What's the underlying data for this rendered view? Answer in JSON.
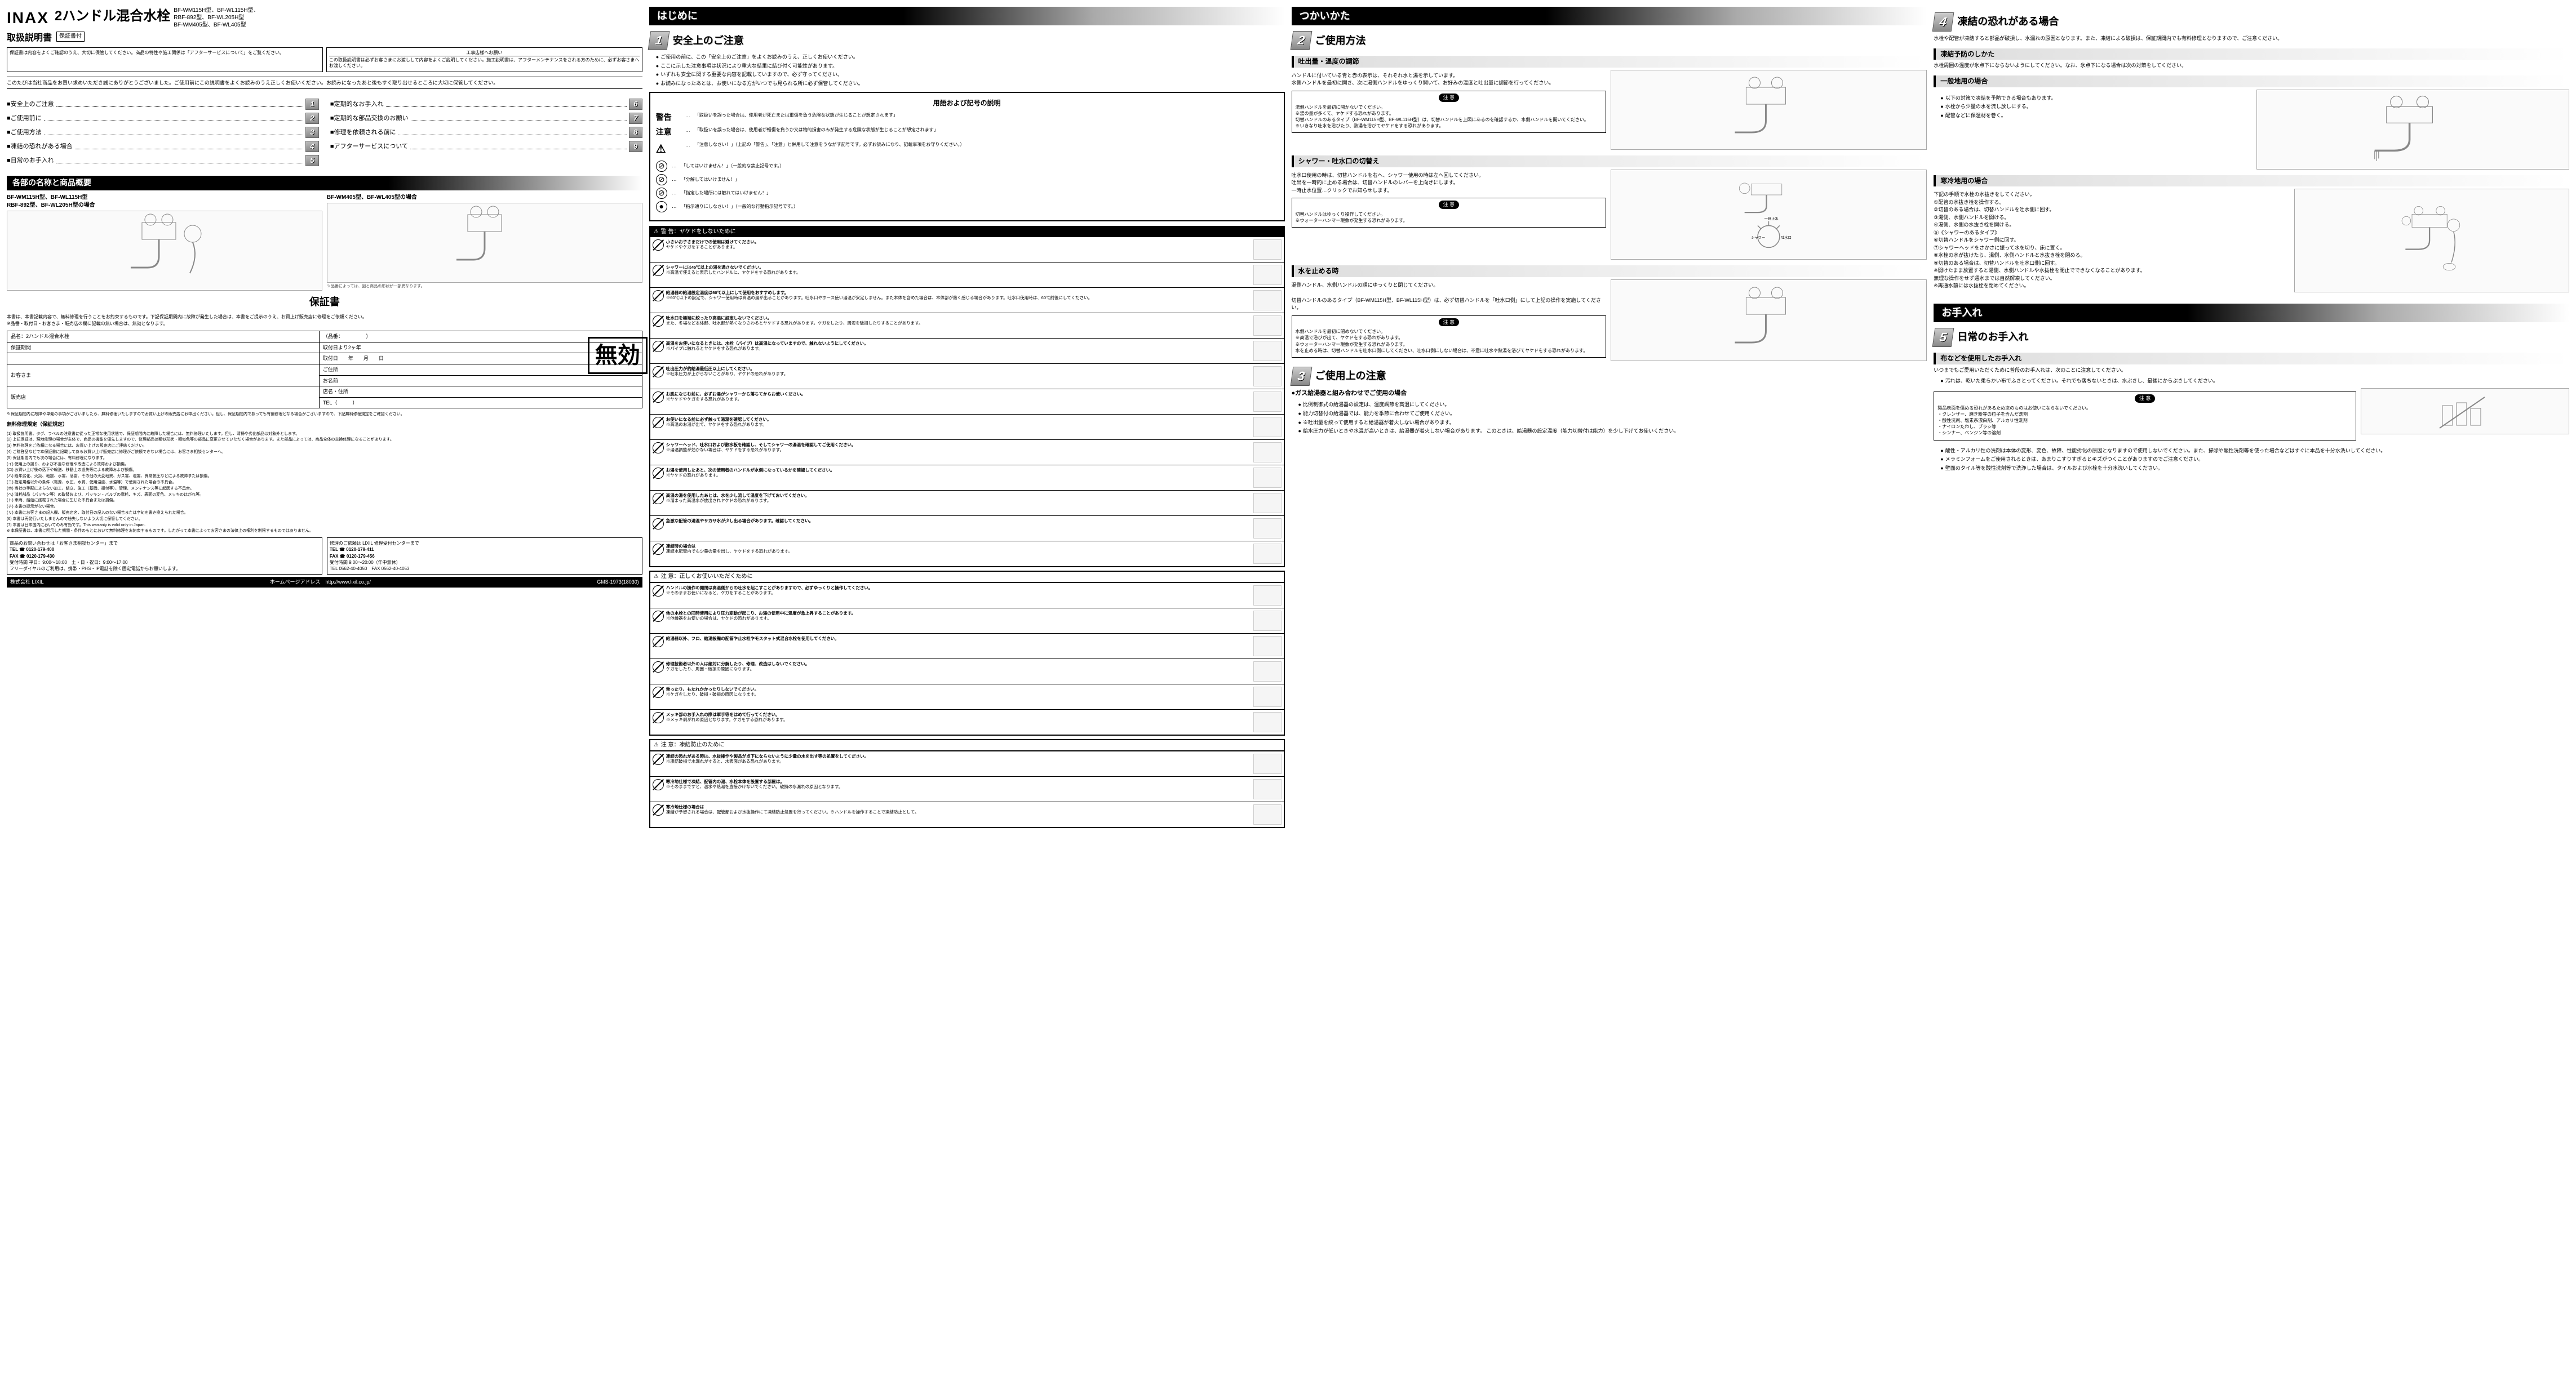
{
  "brand": "INAX",
  "product_title": "2ハンドル混合水栓",
  "models_line1": "BF-WM115H型、BF-WL115H型、",
  "models_line2": "RBF-892型、BF-WL205H型",
  "models_line3": "BF-WM405型、BF-WL405型",
  "manual_label": "取扱説明書",
  "warranty_tag": "保証書付",
  "box1": "保証書は内容をよくご確認のうえ、大切に保管してください。商品の特性や施工関係は「アフターサービスについて」をご覧ください。",
  "box2_title": "工事店様へお願い",
  "box2": "この取扱説明書は必ずお客さまにお渡しして内容をよくご説明してください。施工説明書は、アフターメンテナンスをされる方のために、必ずお客さまへお渡しください。",
  "intro": "このたびは当社商品をお買い求めいただき誠にありがとうございました。ご使用前にこの説明書をよくお読みのうえ正しくお使いください。お読みになったあと後もすぐ取り出せるところに大切に保管してください。",
  "toc_left": [
    {
      "t": "安全上のご注意",
      "n": "1"
    },
    {
      "t": "ご使用前に",
      "n": "2"
    },
    {
      "t": "ご使用方法",
      "n": "3"
    },
    {
      "t": "凍結の恐れがある場合",
      "n": "4"
    },
    {
      "t": "日常のお手入れ",
      "n": "5"
    }
  ],
  "toc_right": [
    {
      "t": "定期的なお手入れ",
      "n": "6"
    },
    {
      "t": "定期的な部品交換のお願い",
      "n": "7"
    },
    {
      "t": "修理を依頼される前に",
      "n": "8"
    },
    {
      "t": "アフターサービスについて",
      "n": "9"
    }
  ],
  "parts_banner": "各部の名称と商品概要",
  "model_a": "BF-WM115H型、BF-WL115H型\nRBF-892型、BF-WL205H型の場合",
  "model_b": "BF-WM405型、BF-WL405型の場合",
  "diagram_caption": "※品番によっては、図と商品の形状が一部異なります。",
  "warranty_title": "保証書",
  "warranty_intro": "本書は、本書記載内容で、無料修理を行うことをお約束するものです。下記保証期間内に故障が発生した場合は、本書をご提示のうえ、お買上げ販売店に修理をご依頼ください。\n※品番・取付日・お客さま・販売店の欄に記載の無い場合は、無効となります。",
  "wt": {
    "r1a": "品名：2ハンドル混合水栓",
    "r1b": "（品番：　　　　　）",
    "r2a": "保証期間",
    "r2b": "取付日より2ヶ年",
    "r2c": "取付日　　年　　月　　日",
    "r3a": "お客さま",
    "r3b": "ご住所",
    "r3c": "お名前",
    "r4a": "販売店",
    "r4b": "店名・住所",
    "r4c": "TEL（　　　）"
  },
  "void": "無効",
  "warranty_note": "※保証期間内に故障や単発の事項がございましたら、無料修理いたしますのでお買い上げの販売店にお申出ください。但し、保証期間内であっても有償修理となる場合がございますので、下記無料修理規定をご確認ください。",
  "warranty_rules_title": "無料修理規定（保証規定）",
  "warranty_rules": [
    "(1) 取扱説明書、タグ、ラベルの注意書に従った正常な使用状態で、保証期間内に故障した場合には、無料修理いたします。但し、清掃や劣化部品は対象外とします。",
    "(2) 上記保証は、現地修理の場合が主体で、商品の機能を優先しますので、修理部品は類似形状・類似色等の部品に変更させていただく場合があります。また部品によっては、商品全体の交換修理になることがあります。",
    "(3) 無料修理をご依頼になる場合には、お買い上げの販売店にご連絡ください。",
    "(4) ご贈答品などで本保証書に記載してあるお買い上げ販売店に修理がご依頼できない場合には、お客さま相談センターへ。",
    "(5) 保証期間内でも次の場合には、有料修理になります。",
    "(イ) 使用上の誤り、および不当な修理や改造による故障および損傷。",
    "(ロ) お買い上げ後の落下や輸送、移動上の過失等による故障および損傷。",
    "(ハ) 経年劣化、火災、地震、水害、落雷、その他の天変地異、ガス害、塩害、異常気圧などによる故障または損傷。",
    "(ニ) 指定規格以外の条件（電源、水圧、水質、使用温度、水温等）で使用された場合の不具合。",
    "(ホ) 当社の手配によらない加工、組立、施工（基礎、据付等）、管理、メンテナンス等に起因する不具合。",
    "(ヘ) 消耗部品（パッキン等）の取替および、パッキン・バルブの摩耗、キズ、表面の変色、メッキのはがれ等。",
    "(ト) 車両、船舶に搭載された場合に生じた不具合または損傷。",
    "(チ) 本書の提示がない場合。",
    "(リ) 本書にお客さまの記入欄、販売店名、取付日の記入のない場合または字句を書き換えられた場合。",
    "(6) 本書は再発行いたしませんので紛失しないよう大切に保管してください。",
    "(7) 本書は日本国内においてのみ有効です。This warranty is valid only in Japan.",
    "※本保証書は、本書に明示した期間・条件のもとにおいて無料修理をお約束するものです。したがって本書によってお客さまの法律上の権利を制限するものではありません。"
  ],
  "contact_l_title": "商品のお問い合わせは「お客さま相談センター」まで",
  "contact_l_tel": "TEL ☎ 0120-179-400",
  "contact_l_fax": "FAX ☎ 0120-179-430",
  "contact_l_hours": "受付時間 平日：9:00～18:00　土・日・祝日：9:00～17:00",
  "contact_l_note": "フリーダイヤルのご利用は、携帯・PHS・IP電話を除く固定電話からお願いします。",
  "contact_r_title": "修理のご依頼は LIXIL 修理受付センターまで",
  "contact_r_tel": "TEL ☎ 0120-179-411",
  "contact_r_fax": "FAX ☎ 0120-179-456",
  "contact_r_hours": "受付時間 9:00～20:00（年中無休）",
  "contact_r_tel2": "TEL 0562-40-4050　FAX 0562-40-4053",
  "company": "株式会社 LIXIL",
  "homepage": "ホームページアドレス　http://www.lixil.co.jp/",
  "doc_no": "GMS-1973(18030)",
  "hajimeni": "はじめに",
  "sec1_title": "安全上のご注意",
  "sec1_bullets": [
    "ご使用の前に、この「安全上のご注意」をよくお読みのうえ、正しくお使いください。",
    "ここに示した注意事項は状況により重大な結果に結び付く可能性があります。",
    "いずれも安全に関する重要な内容を記載していますので、必ず守ってください。",
    "お読みになったあとは、お使いになる方がいつでも見られる所に必ず保管してください。"
  ],
  "terms_title": "用語および記号の説明",
  "keikoku": "警告",
  "chui": "注意",
  "keikoku_desc": "「取扱いを誤った場合は、使用者が死亡または重傷を負う危険な状態が生じることが想定されます」",
  "chui_desc": "「取扱いを誤った場合は、使用者が軽傷を負うか又は物的損害のみが発生する危険な状態が生じることが想定されます」",
  "tri_desc": "「注意しなさい！」（上記の「警告」、「注意」と併用して注意をうながす記号です。必ずお読みになり、記載事項をお守りください。）",
  "sym_rows": [
    {
      "s": "⊘",
      "t": "「してはいけません！」（一般的な禁止記号です。）"
    },
    {
      "s": "⊘",
      "t": "「分解してはいけません！」"
    },
    {
      "s": "⊘",
      "t": "「指定した場所には触れてはいけません！」"
    },
    {
      "s": "●",
      "t": "「指示通りにしなさい！」（一般的な行動指示記号です。）"
    }
  ],
  "panel_warn_title": "警 告：ヤケドをしないために",
  "warn_items": [
    {
      "b": "小さいお子さまだけでの使用は避けてください。",
      "d": "ヤケドやケガをすることがあります。"
    },
    {
      "b": "シャワーには45℃以上の湯を通さないでください。",
      "d": "※高温で使えると表示したハンドルに、ヤケドをする恐れがあります。"
    },
    {
      "b": "給湯器の給湯設定温度は60℃以上にして使用をおすすめします。",
      "d": "※60℃以下の設定で、シャワー使用時は高温の湯が出ることがあります。吐水口やホース使い湯温が安定しません。また本体を含めた場合は、本体部が熱く感じる場合があります。吐水口使用時は、60℃前後にしてください。"
    },
    {
      "b": "吐水口を極端に絞ったり高温に設定しないでください。",
      "d": "また、冬場など本体部、吐水部が熱くなりさわるとヤケドする恐れがあります。ケガをしたり、周辺を破損したりすることがあります。"
    },
    {
      "b": "高温をお使いになるときには、水栓（パイプ）は高温になっていますので、触れないようにしてください。",
      "d": "※パイプに触れるとヤケドをする恐れがあります。"
    },
    {
      "b": "吐出圧力が約給湯最低圧以上にしてください。",
      "d": "※吐水圧力が上がらないことがあり、ヤケドの恐れがあります。"
    },
    {
      "b": "お肌になじむ前に、必ずお湯がシャワーから落ちてからお使いください。",
      "d": "※ヤケドやケガをする恐れがあります。"
    },
    {
      "b": "お使いになる前に必ず触って湯温を確認してください。",
      "d": "※高温のお湯が出て、ヤケドをする恐れがあります。"
    },
    {
      "b": "シャワーヘッド、吐水口および散水板を確認し、そしてシャワーの湯温を確認してご使用ください。",
      "d": "※湯温調整が効かない場合は、ヤケドをする恐れがあります。"
    },
    {
      "b": "お湯を使用したあと、次の使用者のハンドルが水側になっているかを確認してください。",
      "d": "※ヤケドの恐れがあります。"
    },
    {
      "b": "高温の湯を使用したあとは、水を少し流して温度を下げておいてください。",
      "d": "※溜まった高温水が放出されヤケドの恐れがあります。"
    },
    {
      "b": "急激な配管の湯温やサカサ水が少し出る場合があります。確認してください。"
    },
    {
      "b": "凍結時の場合は",
      "d": "凍結水配管内でも少量の量を出し、ヤケドをする恐れがあります。"
    }
  ],
  "panel_caution1_title": "注 意：正しくお使いいただくために",
  "caution1_items": [
    {
      "b": "ハンドルの操作の開閉は高温側からの吐水を起こすことがありますので、必ずゆっくりと操作してください。",
      "d": "※そのままお使いになると、ケガをすることがあります。"
    },
    {
      "b": "他の水栓との同時使用により圧力変動が起こり、お湯の使用中に温度が急上昇することがあります。",
      "d": "※他機器をお使いの場合は、ヤケドの恐れがあります。"
    },
    {
      "b": "給湯器以外、フロ、給湯設備の配管や止水栓やモスタット式混合水栓を使用してください。"
    },
    {
      "b": "修理技術者以外の人は絶対に分解したり、修理、改造はしないでください。",
      "d": "ケガをしたり、周囲・破損の原因になります。"
    },
    {
      "b": "乗ったり、もたれかかったりしないでください。",
      "d": "※ケガをしたり、破損・破損の原因になります。"
    },
    {
      "b": "メッキ部のお手入れの際は軍手等をはめて行ってください。",
      "d": "※メッキ剥がれの原因となります。ケガをする恐れがあります。"
    }
  ],
  "panel_caution2_title": "注 意：凍結防止のために",
  "caution2_items": [
    {
      "b": "凍結の恐れがある時は、水抜操作や製品が点下にならないように少量の水を出す等の処置をしてください。",
      "d": "※凍結破損で水漏れがすると、水表面がある恐れがあります。"
    },
    {
      "b": "寒冷地仕様で凍結、配管内の湯、水栓本体を設置する部屋は。",
      "d": "※そのままですと、温水や熱湯を直接かけないでください。破損の水漏れの原因となります。"
    },
    {
      "b": "寒冷地仕様の場合は",
      "d": "凍結が予想される場合は、配管部および水抜操作にて凍結防止処置を行ってください。※ハンドルを操作することで凍結防止として。"
    }
  ],
  "tsukaikata": "つかいかた",
  "sec2_title": "ご使用方法",
  "sub_flow": "吐出量・温度の調節",
  "flow_text": "ハンドルに付いている青と赤の表示は、それぞれ水と湯を示しています。\n水側ハンドルを最初に開き、次に湯側ハンドルをゆっくり開いて、お好みの温度と吐出量に調節を行ってください。",
  "flow_note_items": [
    "湯側ハンドルを最初に開かないでください。",
    "※湯の量が多くて、ヤケドする恐れがあります。",
    "切替ハンドルのあるタイプ（BF-WM115H型、BF-WL115H型）は、切替ハンドルを上図にあるのを確認するか、水側ハンドルを開いてください。",
    "※いきなり吐水を浴びたり、熱湯を浴びてヤケドをする恐れがあります。"
  ],
  "sub_shower": "シャワー・吐水口の切替え",
  "shower_text": "吐水口使用の時は、切替ハンドルを右へ、シャワー使用の時は左へ回してください。\n吐出を一時的に止める場合は、切替ハンドルのレバーを上向きにします。\n一時止水位置…クリックでお知らせします。",
  "shower_note": "切替ハンドルはゆっくり操作してください。\n※ウォーターハンマー現象が発生する恐れがあります。",
  "sub_stop": "水を止める時",
  "stop_text": "湯側ハンドル、水側ハンドルの順にゆっくりと閉じてください。\n\n切替ハンドルのあるタイプ（BF-WM115H型、BF-WL115H型）は、必ず切替ハンドルを「吐水口側」にして上記の操作を実施してください。",
  "stop_note_items": [
    "水側ハンドルを最初に閉めないでください。",
    "※高温で浴びが出て、ヤケドをする恐れがあります。",
    "※ウォーターハンマー現象が発生する恐れがあります。",
    "水を止める時は、切替ハンドルを吐水口側にしてください、吐水口側にしない場合は、不意に吐水や熱湯を浴びてヤケドをする恐れがあります。"
  ],
  "sec3_title": "ご使用上の注意",
  "gas_title": "●ガス給湯器と組み合わせでご使用の場合",
  "gas_items": [
    "比例制御式の給湯器の設定は、温度調節を高温にしてください。",
    "能力切替付の給湯器では、能力を季節に合わせてご使用ください。",
    "※吐出量を絞って使用すると給湯器が着火しない場合があります。",
    "給水圧力が低いときや水温が高いときは、給湯器が着火しない場合があります。\nこのときは、給湯器の設定温度（能力切替付は能力）を少し下げてお使いください。"
  ],
  "sec4_title": "凍結の恐れがある場合",
  "sec4_intro": "水栓や配管が凍結すると部品が破損し、水漏れの原因となります。また、凍結による破損は、保証期間内でも有料修理となりますので、ご注意ください。",
  "sub_prevent": "凍結予防のしかた",
  "prevent_text": "水栓周囲の温度が氷点下にならないようにしてください。なお、氷点下になる場合は次の対策をしてください。",
  "sub_general": "一般地用の場合",
  "general_items": [
    "以下の対策で凍結を予防できる場合もあります。",
    "水栓から少量の水を流し放しにする。",
    "配管などに保温材を巻く。"
  ],
  "sub_cold": "寒冷地用の場合",
  "cold_items": [
    "下記の手順で水栓の水抜きをしてください。",
    "①配管の水抜き栓を操作する。",
    "②切替のある場合は、切替ハンドルを吐水側に回す。",
    "③湯側、水側ハンドルを開ける。",
    "④湯側、水側の水抜き栓を開ける。",
    "⑤《シャワーのあるタイプ》",
    "⑥切替ハンドルをシャワー側に回す。",
    "⑦シャワーヘッドをさかさに振って水を切り、床に置く。",
    "⑧水栓の水が抜けたら、湯側、水側ハンドルと水抜き栓を閉める。",
    "⑨切替のある場合は、切替ハンドルを吐水口側に回す。",
    "※開けたまま放置すると湯側、水側ハンドルや水抜栓を閉止でできなくなることがあります。\n無理な操作をせず通水までは自然解凍してください。",
    "※再通水前には水抜栓を閉めてください。"
  ],
  "oteire": "お手入れ",
  "sec5_title": "日常のお手入れ",
  "sub_cloth": "布などを使用したお手入れ",
  "cloth_text": "いつまでもご愛用いただくために普段のお手入れは、次のことに注意してください。",
  "cloth_bullet": "汚れは、乾いた柔らかい布でふきとってください。それでも落ちないときは、水ぶきし、最後にからぶきしてください。",
  "cloth_note_title": "注 意",
  "cloth_note": "製品表面を傷める恐れがあるため次のものはお使いにならないでください。\n・クレンザー、磨き粉等の粒子を含んだ洗剤\n・酸性洗剤、塩素系漂白剤、アルカリ性洗剤\n・ナイロンたわし、ブラシ等\n・シンナー、ベンジン等の溶剤",
  "cloth_after": [
    "酸性・アルカリ性の洗剤は本体の変形、変色、故障、性能劣化の原因となりますので使用しないでください。また、掃除や酸性洗剤等を使った場合などはすぐに本品を十分水洗いしてください。",
    "メラミンフォームをご使用されるときは、あまりこすりすぎるとキズがつくことがありますのでご注意ください。",
    "壁面のタイル等を酸性洗剤等で洗浄した場合は、タイルおよび水栓を十分水洗いしてください。"
  ],
  "faucet_labels": {
    "hot": "湯側ハンドル",
    "cold": "水側ハンドル",
    "switch": "切替ハンドル",
    "label": "品番ラベル",
    "drain": "水抜栓",
    "spout": "吐水口",
    "shower": "シャワー",
    "stop": "一時止水"
  }
}
